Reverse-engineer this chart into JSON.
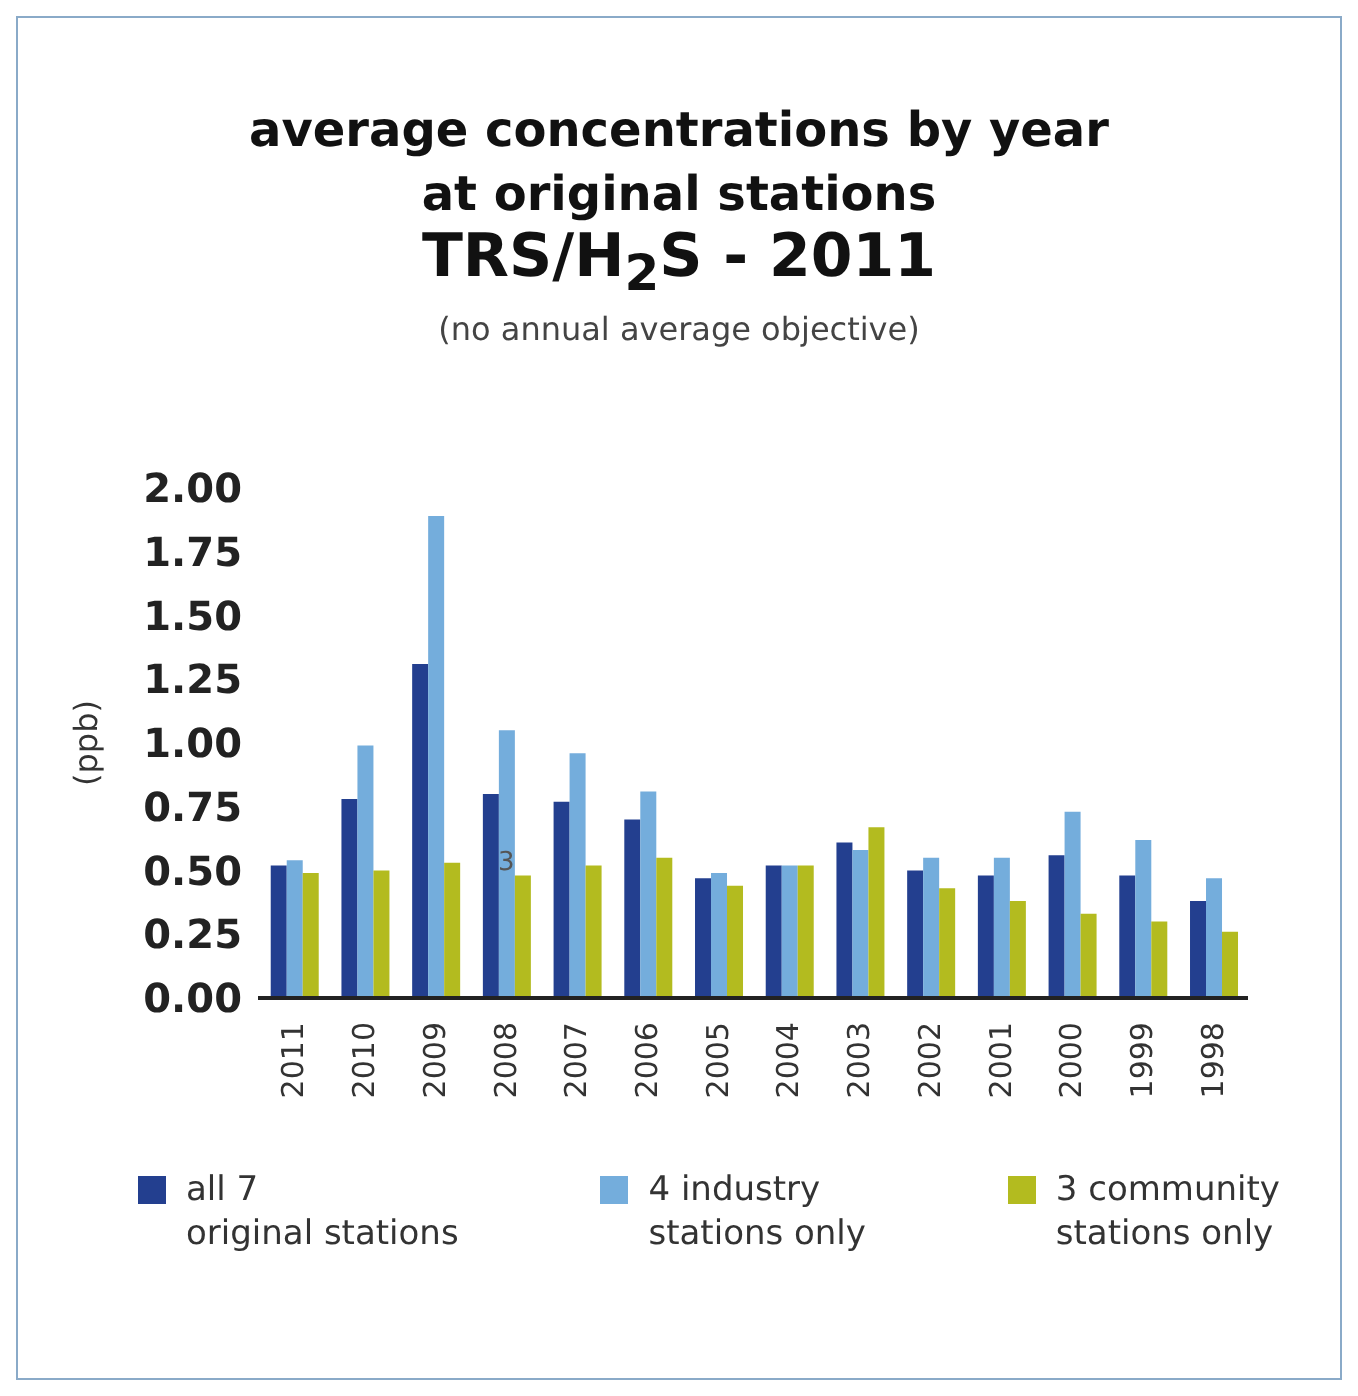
{
  "chart_data": {
    "type": "bar",
    "title": "average concentrations by year\nat original stations\nTRS/H$_{2}$S - 2011",
    "subtitle": "(no annual average objective)",
    "ylabel": "(ppb)",
    "categories": [
      "2011",
      "2010",
      "2009",
      "2008",
      "2007",
      "2006",
      "2005",
      "2004",
      "2003",
      "2002",
      "2001",
      "2000",
      "1999",
      "1998"
    ],
    "series": [
      {
        "name": "all 7\noriginal stations",
        "color": "#233f8f",
        "values": [
          0.52,
          0.78,
          1.31,
          0.8,
          0.77,
          0.7,
          0.47,
          0.52,
          0.61,
          0.5,
          0.48,
          0.56,
          0.48,
          0.38
        ]
      },
      {
        "name": "4 industry\nstations only",
        "color": "#74addc",
        "values": [
          0.54,
          0.99,
          1.89,
          1.05,
          0.96,
          0.81,
          0.49,
          0.52,
          0.58,
          0.55,
          0.55,
          0.73,
          0.62,
          0.47
        ]
      },
      {
        "name": "3 community\nstations only",
        "color": "#b3bb1f",
        "values": [
          0.49,
          0.5,
          0.53,
          0.48,
          0.52,
          0.55,
          0.44,
          0.52,
          0.67,
          0.43,
          0.38,
          0.33,
          0.3,
          0.26
        ]
      }
    ],
    "ylim": [
      0,
      2
    ],
    "yticks": [
      {
        "value": 0,
        "label": "0.00"
      },
      {
        "value": 0.25,
        "label": "0.25"
      },
      {
        "value": 0.5,
        "label": "0.50"
      },
      {
        "value": 0.75,
        "label": "0.75"
      },
      {
        "value": 1,
        "label": "1.00"
      },
      {
        "value": 1.25,
        "label": "1.25"
      },
      {
        "value": 1.5,
        "label": "1.50"
      },
      {
        "value": 1.75,
        "label": "1.75"
      },
      {
        "value": 2,
        "label": "2.00"
      }
    ],
    "annotations": [
      "3"
    ],
    "grid": false,
    "legend": "bottom"
  }
}
